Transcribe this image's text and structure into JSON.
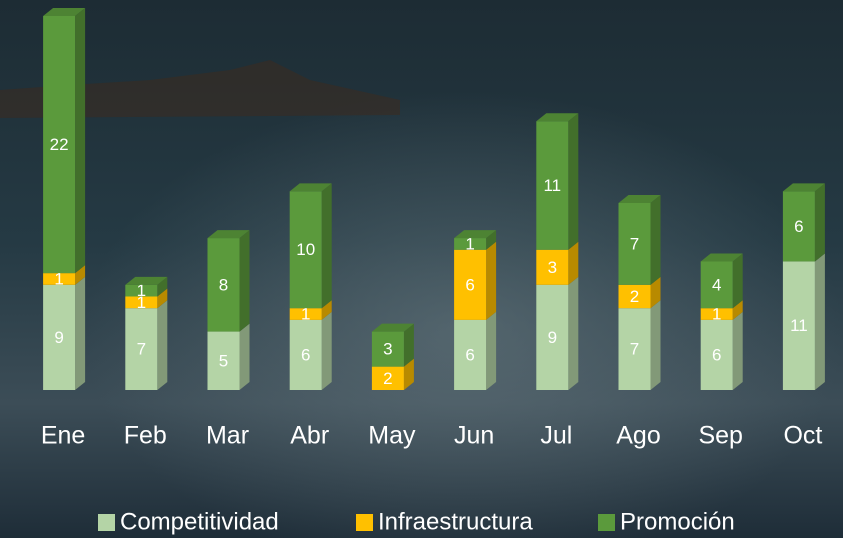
{
  "chart_data": {
    "type": "stacked-bar-3d",
    "categories": [
      "Ene",
      "Feb",
      "Mar",
      "Abr",
      "May",
      "Jun",
      "Jul",
      "Ago",
      "Sep",
      "Oct"
    ],
    "series": [
      {
        "name": "Competitividad",
        "color": "#b4d4a6",
        "values": [
          9,
          7,
          5,
          6,
          null,
          6,
          9,
          7,
          6,
          11
        ]
      },
      {
        "name": "Infraestructura",
        "color": "#ffc000",
        "values": [
          1,
          1,
          null,
          1,
          2,
          6,
          3,
          2,
          1,
          null
        ]
      },
      {
        "name": "Promoción",
        "color": "#5b9a3c",
        "values": [
          22,
          1,
          8,
          10,
          3,
          1,
          11,
          7,
          4,
          6
        ]
      }
    ]
  }
}
